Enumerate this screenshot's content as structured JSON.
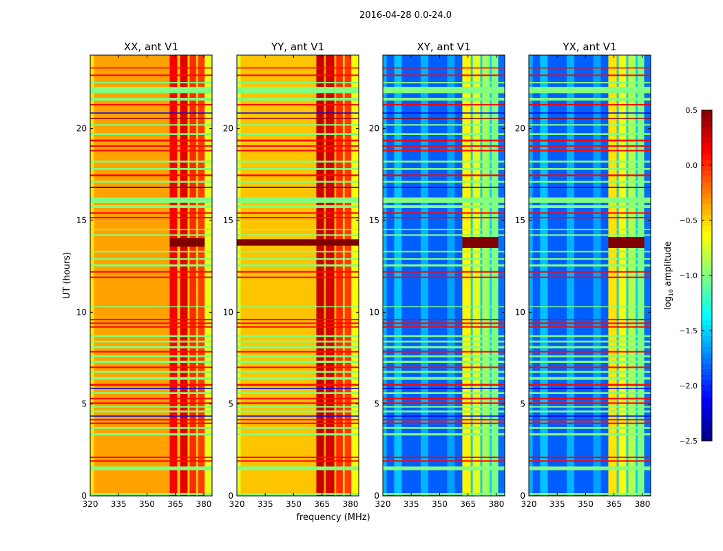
{
  "chart_data": {
    "type": "heatmap",
    "title": "2016-04-28 0.0-24.0",
    "xlabel": "frequency (MHz)",
    "ylabel": "UT (hours)",
    "xlim": [
      320,
      384.4
    ],
    "ylim": [
      0,
      24
    ],
    "xticks": [
      "320",
      "335",
      "350",
      "365",
      "380"
    ],
    "xtick_values": [
      320,
      335,
      350,
      365,
      380
    ],
    "yticks": [
      "0",
      "5",
      "10",
      "15",
      "20"
    ],
    "ytick_values": [
      0,
      5,
      10,
      15,
      20
    ],
    "colorbar": {
      "label_main": "log",
      "label_sub": "10",
      "label_rest": " amplitude",
      "range": [
        -2.5,
        0.5
      ],
      "colormap": "jet",
      "ticks": [
        "0.5",
        "0.0",
        "−0.5",
        "−1.0",
        "−1.5",
        "−2.0",
        "−2.5"
      ],
      "tick_values": [
        0.5,
        0.0,
        -0.5,
        -1.0,
        -1.5,
        -2.0,
        -2.5
      ]
    },
    "panels": [
      {
        "title": "XX, ant V1",
        "base": -0.35,
        "freq_bands": [
          [
            320,
            322,
            -0.55
          ],
          [
            362,
            366,
            0.15
          ],
          [
            366,
            367.5,
            -0.45
          ],
          [
            367.5,
            371.5,
            0.2
          ],
          [
            371.5,
            372.5,
            -0.5
          ],
          [
            372.5,
            376,
            0.0
          ],
          [
            376,
            377,
            -0.5
          ],
          [
            377,
            380.5,
            -0.05
          ],
          [
            380.5,
            384.4,
            -0.7
          ]
        ],
        "flare": {
          "t": 13.8,
          "h": 0.45,
          "v": 0.5,
          "f0": 362,
          "f1": 380.5
        }
      },
      {
        "title": "YY, ant V1",
        "base": -0.45,
        "freq_bands": [
          [
            320,
            322,
            -0.7
          ],
          [
            362,
            366,
            0.3
          ],
          [
            366,
            367,
            -0.35
          ],
          [
            367,
            371.5,
            0.25
          ],
          [
            371.5,
            372.5,
            -0.4
          ],
          [
            372.5,
            376,
            0.0
          ],
          [
            376,
            377,
            -0.5
          ],
          [
            377,
            380.5,
            -0.05
          ],
          [
            380.5,
            384.4,
            -0.65
          ]
        ],
        "flare": {
          "t": 13.8,
          "h": 0.35,
          "v": 0.5,
          "f0": 320,
          "f1": 384.4
        }
      },
      {
        "title": "XY, ant V1",
        "base": -1.85,
        "freq_bands": [
          [
            320,
            322,
            -1.6
          ],
          [
            326,
            330,
            -1.55
          ],
          [
            340,
            344,
            -1.6
          ],
          [
            354,
            358,
            -1.65
          ],
          [
            362,
            366.5,
            -0.6
          ],
          [
            366.5,
            367.5,
            -1.5
          ],
          [
            367.5,
            371.5,
            -0.7
          ],
          [
            371.5,
            372.5,
            -1.5
          ],
          [
            372.5,
            376.5,
            -0.9
          ],
          [
            376.5,
            377.5,
            -1.5
          ],
          [
            377.5,
            381,
            -1.0
          ],
          [
            381,
            384.4,
            -1.8
          ]
        ],
        "flare": {
          "t": 13.8,
          "h": 0.6,
          "v": 0.5,
          "f0": 362,
          "f1": 381
        }
      },
      {
        "title": "YX, ant V1",
        "base": -1.85,
        "freq_bands": [
          [
            320,
            322,
            -1.6
          ],
          [
            326,
            330,
            -1.55
          ],
          [
            340,
            344,
            -1.6
          ],
          [
            354,
            358,
            -1.65
          ],
          [
            362,
            366.5,
            -0.55
          ],
          [
            366.5,
            367.5,
            -1.5
          ],
          [
            367.5,
            371.5,
            -0.65
          ],
          [
            371.5,
            372.5,
            -1.5
          ],
          [
            372.5,
            376.5,
            -0.85
          ],
          [
            376.5,
            377.5,
            -1.5
          ],
          [
            377.5,
            381,
            -1.0
          ],
          [
            381,
            384.4,
            -1.8
          ]
        ],
        "flare": {
          "t": 13.8,
          "h": 0.6,
          "v": 0.5,
          "f0": 362,
          "f1": 381
        }
      }
    ],
    "time_stripes": [
      {
        "t": 0.1,
        "h": 0.1,
        "v": -1.0
      },
      {
        "t": 1.5,
        "h": 0.2,
        "v": -1.0
      },
      {
        "t": 1.9,
        "h": 0.08,
        "v": 0.1
      },
      {
        "t": 2.1,
        "h": 0.08,
        "v": 0.1
      },
      {
        "t": 3.35,
        "h": 0.12,
        "v": -1.0
      },
      {
        "t": 3.7,
        "h": 0.1,
        "v": -1.0
      },
      {
        "t": 3.95,
        "h": 0.08,
        "v": 0.1
      },
      {
        "t": 4.15,
        "h": 0.08,
        "v": 0.1
      },
      {
        "t": 4.35,
        "h": 0.05,
        "v": -2.2
      },
      {
        "t": 4.6,
        "h": 0.1,
        "v": -1.0
      },
      {
        "t": 4.85,
        "h": 0.08,
        "v": -1.0
      },
      {
        "t": 5.05,
        "h": 0.08,
        "v": 0.1
      },
      {
        "t": 5.3,
        "h": 0.08,
        "v": 0.1
      },
      {
        "t": 5.6,
        "h": 0.1,
        "v": -1.0
      },
      {
        "t": 5.85,
        "h": 0.05,
        "v": -2.2
      },
      {
        "t": 6.05,
        "h": 0.1,
        "v": 0.1
      },
      {
        "t": 6.4,
        "h": 0.15,
        "v": -1.0
      },
      {
        "t": 6.75,
        "h": 0.1,
        "v": -1.0
      },
      {
        "t": 7.0,
        "h": 0.08,
        "v": 0.1
      },
      {
        "t": 7.3,
        "h": 0.12,
        "v": -1.0
      },
      {
        "t": 7.6,
        "h": 0.1,
        "v": -1.0
      },
      {
        "t": 7.85,
        "h": 0.08,
        "v": 0.1
      },
      {
        "t": 8.1,
        "h": 0.12,
        "v": -1.0
      },
      {
        "t": 8.4,
        "h": 0.1,
        "v": -1.0
      },
      {
        "t": 8.7,
        "h": 0.1,
        "v": -1.0
      },
      {
        "t": 9.2,
        "h": 0.08,
        "v": 0.1
      },
      {
        "t": 9.4,
        "h": 0.08,
        "v": 0.1
      },
      {
        "t": 9.6,
        "h": 0.08,
        "v": 0.1
      },
      {
        "t": 10.3,
        "h": 0.05,
        "v": -1.0
      },
      {
        "t": 11.9,
        "h": 0.08,
        "v": 0.1
      },
      {
        "t": 12.2,
        "h": 0.08,
        "v": 0.1
      },
      {
        "t": 12.55,
        "h": 0.12,
        "v": -1.0
      },
      {
        "t": 12.9,
        "h": 0.08,
        "v": -1.0
      },
      {
        "t": 13.3,
        "h": 0.08,
        "v": -1.0
      },
      {
        "t": 14.2,
        "h": 0.08,
        "v": -1.0
      },
      {
        "t": 14.5,
        "h": 0.06,
        "v": -1.0
      },
      {
        "t": 15.15,
        "h": 0.08,
        "v": 0.1
      },
      {
        "t": 15.4,
        "h": 0.08,
        "v": 0.1
      },
      {
        "t": 15.75,
        "h": 0.15,
        "v": -1.0
      },
      {
        "t": 16.1,
        "h": 0.3,
        "v": -1.0
      },
      {
        "t": 16.8,
        "h": 0.05,
        "v": -2.2
      },
      {
        "t": 17.1,
        "h": 0.1,
        "v": -1.0
      },
      {
        "t": 17.45,
        "h": 0.1,
        "v": 0.1
      },
      {
        "t": 17.8,
        "h": 0.1,
        "v": -1.0
      },
      {
        "t": 18.2,
        "h": 0.1,
        "v": -1.0
      },
      {
        "t": 18.8,
        "h": 0.08,
        "v": 0.1
      },
      {
        "t": 19.05,
        "h": 0.08,
        "v": 0.1
      },
      {
        "t": 19.35,
        "h": 0.1,
        "v": 0.1
      },
      {
        "t": 19.7,
        "h": 0.1,
        "v": -1.0
      },
      {
        "t": 20.2,
        "h": 0.08,
        "v": -1.0
      },
      {
        "t": 20.55,
        "h": 0.05,
        "v": 0.4
      },
      {
        "t": 20.85,
        "h": 0.05,
        "v": -2.2
      },
      {
        "t": 21.3,
        "h": 0.08,
        "v": 0.1
      },
      {
        "t": 21.6,
        "h": 0.15,
        "v": -1.0
      },
      {
        "t": 22.1,
        "h": 0.35,
        "v": -1.0
      },
      {
        "t": 22.5,
        "h": 0.08,
        "v": -1.0
      },
      {
        "t": 22.9,
        "h": 0.08,
        "v": 0.1
      },
      {
        "t": 23.3,
        "h": 0.06,
        "v": 0.1
      }
    ]
  }
}
